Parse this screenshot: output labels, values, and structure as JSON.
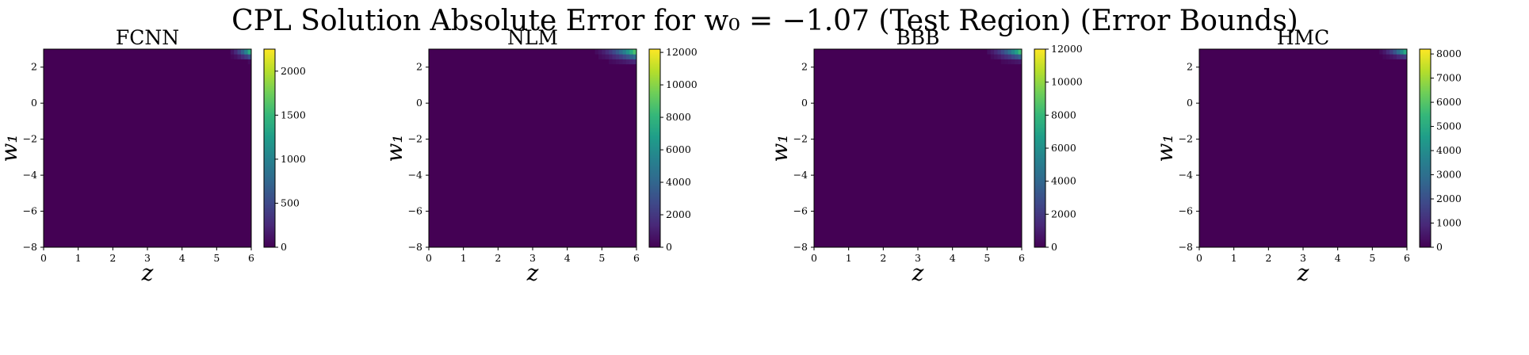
{
  "figure": {
    "title": "CPL Solution Absolute Error for w₀ = −1.07 (Test Region) (Error Bounds)"
  },
  "colors": {
    "colormap": "viridis",
    "viridis_stops": [
      "#440154",
      "#482878",
      "#3e4989",
      "#31688e",
      "#26828e",
      "#1f9e89",
      "#35b779",
      "#6ece58",
      "#b5de2b",
      "#fde725"
    ]
  },
  "chart_data": [
    {
      "type": "heatmap",
      "title": "FCNN",
      "xlabel": "z",
      "ylabel": "w₁",
      "xlim": [
        0,
        6
      ],
      "ylim": [
        -8,
        3
      ],
      "xticks": [
        0,
        1,
        2,
        3,
        4,
        5,
        6
      ],
      "yticks": [
        -8,
        -6,
        -4,
        -2,
        0,
        2
      ],
      "colorbar": {
        "min": 0,
        "max": 2250,
        "ticks": [
          0,
          500,
          1000,
          1500,
          2000
        ]
      },
      "hotspot": {
        "z_from": 5.2,
        "w1_from": 2.2,
        "peak_at": [
          6,
          3
        ]
      }
    },
    {
      "type": "heatmap",
      "title": "NLM",
      "xlabel": "z",
      "ylabel": "w₁",
      "xlim": [
        0,
        6
      ],
      "ylim": [
        -8,
        3
      ],
      "xticks": [
        0,
        1,
        2,
        3,
        4,
        5,
        6
      ],
      "yticks": [
        -8,
        -6,
        -4,
        -2,
        0,
        2
      ],
      "colorbar": {
        "min": 0,
        "max": 12200,
        "ticks": [
          0,
          2000,
          4000,
          6000,
          8000,
          10000,
          12000
        ]
      },
      "hotspot": {
        "z_from": 4.5,
        "w1_from": 2.0,
        "peak_at": [
          6,
          3
        ]
      }
    },
    {
      "type": "heatmap",
      "title": "BBB",
      "xlabel": "z",
      "ylabel": "w₁",
      "xlim": [
        0,
        6
      ],
      "ylim": [
        -8,
        3
      ],
      "xticks": [
        0,
        1,
        2,
        3,
        4,
        5,
        6
      ],
      "yticks": [
        -8,
        -6,
        -4,
        -2,
        0,
        2
      ],
      "colorbar": {
        "min": 0,
        "max": 12000,
        "ticks": [
          0,
          2000,
          4000,
          6000,
          8000,
          10000,
          12000
        ]
      },
      "hotspot": {
        "z_from": 4.7,
        "w1_from": 2.1,
        "peak_at": [
          6,
          3
        ]
      }
    },
    {
      "type": "heatmap",
      "title": "HMC",
      "xlabel": "z",
      "ylabel": "w₁",
      "xlim": [
        0,
        6
      ],
      "ylim": [
        -8,
        3
      ],
      "xticks": [
        0,
        1,
        2,
        3,
        4,
        5,
        6
      ],
      "yticks": [
        -8,
        -6,
        -4,
        -2,
        0,
        2
      ],
      "colorbar": {
        "min": 0,
        "max": 8200,
        "ticks": [
          0,
          1000,
          2000,
          3000,
          4000,
          5000,
          6000,
          7000,
          8000
        ]
      },
      "hotspot": {
        "z_from": 5.0,
        "w1_from": 2.3,
        "peak_at": [
          6,
          3
        ]
      }
    }
  ]
}
